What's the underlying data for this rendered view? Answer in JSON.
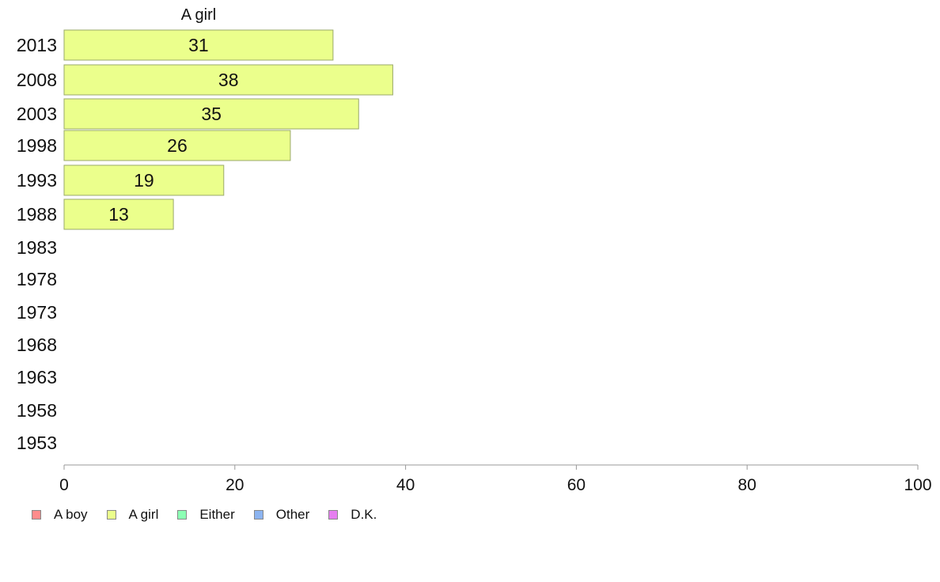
{
  "chart_data": {
    "type": "bar",
    "orientation": "horizontal",
    "title": "A girl",
    "categories": [
      "2013",
      "2008",
      "2003",
      "1998",
      "1993",
      "1988",
      "1983",
      "1978",
      "1973",
      "1968",
      "1963",
      "1958",
      "1953"
    ],
    "values": [
      31.5,
      38.5,
      34.5,
      26.5,
      18.7,
      12.8,
      null,
      null,
      null,
      null,
      null,
      null,
      null
    ],
    "value_labels": [
      "31",
      "38",
      "35",
      "26",
      "19",
      "13",
      "",
      "",
      "",
      "",
      "",
      "",
      ""
    ],
    "xlim": [
      0,
      100
    ],
    "xticks": [
      "0",
      "20",
      "40",
      "60",
      "80",
      "100"
    ],
    "bar_color": "#ebff8c",
    "bar_border": "#9aa86a",
    "grid": false,
    "legend_position": "bottom-left",
    "legend": [
      {
        "label": "A boy",
        "color": "#ff8c8c"
      },
      {
        "label": "A girl",
        "color": "#ebff8c"
      },
      {
        "label": "Either",
        "color": "#8cffb4"
      },
      {
        "label": "Other",
        "color": "#8cb4f0"
      },
      {
        "label": "D.K.",
        "color": "#e67ff0"
      }
    ]
  }
}
